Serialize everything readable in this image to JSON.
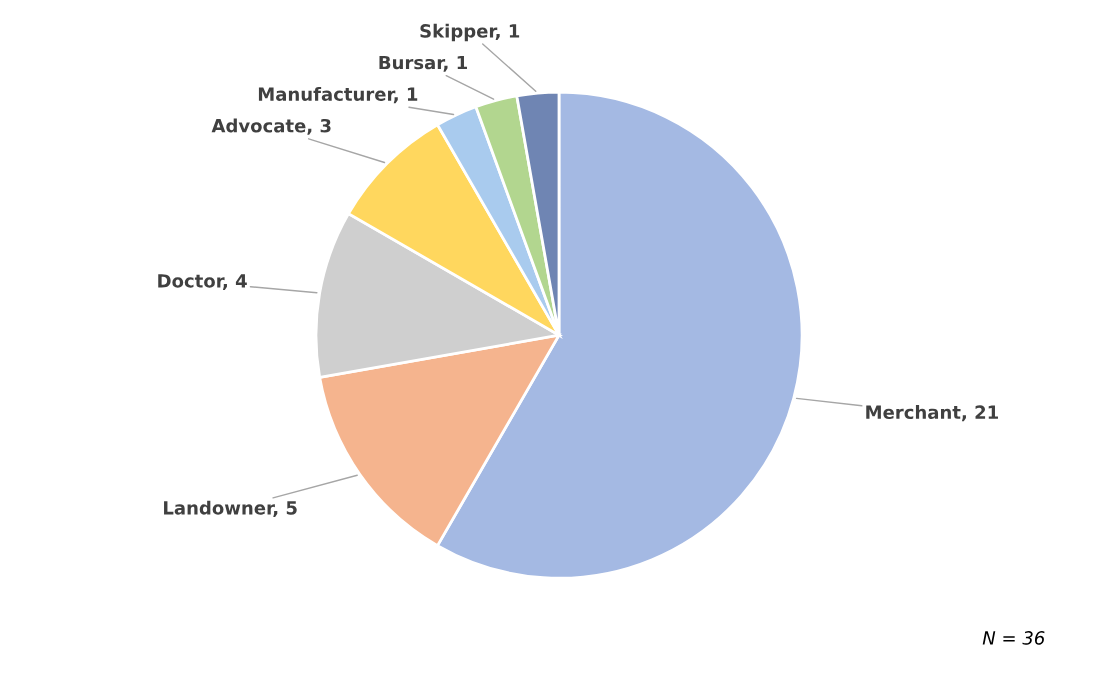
{
  "chart_data": {
    "type": "pie",
    "categories": [
      "Merchant",
      "Landowner",
      "Doctor",
      "Advocate",
      "Manufacturer",
      "Bursar",
      "Skipper"
    ],
    "values": [
      21,
      5,
      4,
      3,
      1,
      1,
      1
    ],
    "colors": [
      "#a4b9e3",
      "#f5b48e",
      "#cfcfcf",
      "#ffd75e",
      "#a9cbee",
      "#b2d68f",
      "#6f85b3"
    ],
    "value_labels": [
      "21",
      "5",
      "4",
      "3",
      "1",
      "1",
      "1"
    ],
    "annotations": [
      "N = 36"
    ]
  }
}
